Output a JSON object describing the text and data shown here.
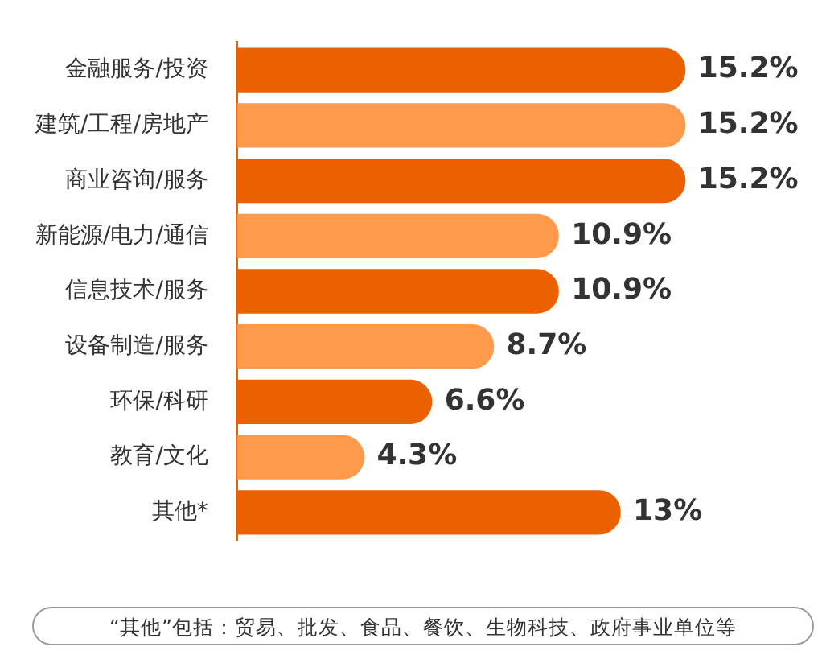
{
  "chart_data": {
    "type": "bar",
    "orientation": "horizontal",
    "categories": [
      "金融服务/投资",
      "建筑/工程/房地产",
      "商业咨询/服务",
      "新能源/电力/通信",
      "信息技术/服务",
      "设备制造/服务",
      "环保/科研",
      "教育/文化",
      "其他*"
    ],
    "values": [
      15.2,
      15.2,
      15.2,
      10.9,
      10.9,
      8.7,
      6.6,
      4.3,
      13
    ],
    "value_labels": [
      "15.2%",
      "15.2%",
      "15.2%",
      "10.9%",
      "10.9%",
      "8.7%",
      "6.6%",
      "4.3%",
      "13%"
    ],
    "colors": [
      "#eb6100",
      "#ff9a4c",
      "#eb6100",
      "#ff9a4c",
      "#eb6100",
      "#ff9a4c",
      "#eb6100",
      "#ff9a4c",
      "#eb6100"
    ],
    "grid": false,
    "legend": false,
    "annotations": [
      "“其他”包括：贸易、批发、食品、餐饮、生物科技、政府事业单位等"
    ]
  }
}
